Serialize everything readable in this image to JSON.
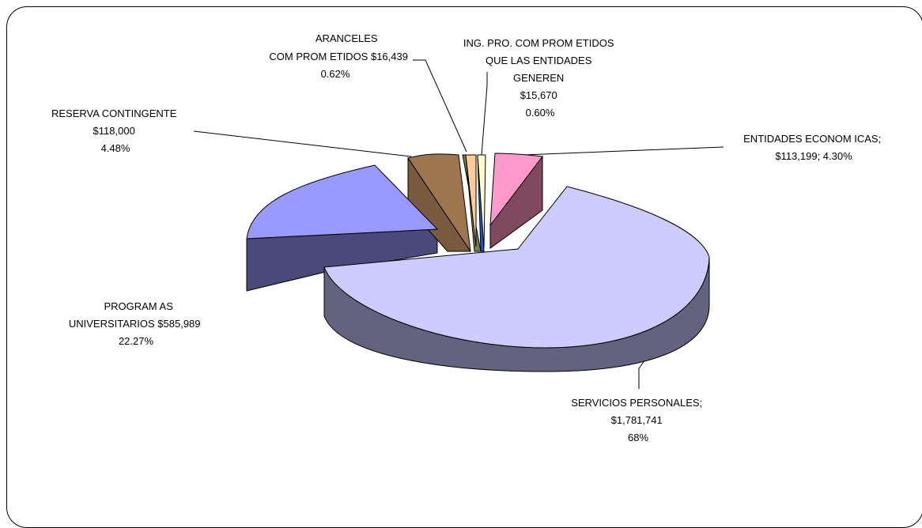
{
  "chart_data": {
    "type": "pie",
    "style": "3d-exploded",
    "slices": [
      {
        "key": "servicios",
        "name": "SERVICIOS PERSONALES",
        "value": 1781741,
        "percent": 68,
        "label_lines": [
          "SERVICIOS PERSONALES;",
          "$1,781,741",
          "68%"
        ],
        "top_color": "#ccccff",
        "side_color": "#636380"
      },
      {
        "key": "programas",
        "name": "PROGRAMAS UNIVERSITARIOS",
        "value": 585989,
        "percent": 22.27,
        "label_lines": [
          "PROGRAM AS",
          "UNIVERSITARIOS $585,989",
          "22.27%"
        ],
        "top_color": "#9999ff",
        "side_color": "#4a4a7a"
      },
      {
        "key": "reserva",
        "name": "RESERVA CONTINGENTE",
        "value": 118000,
        "percent": 4.48,
        "label_lines": [
          "RESERVA CONTINGENTE",
          "$118,000",
          "4.48%"
        ],
        "top_color": "#9d7650",
        "side_color": "#7a5a3c"
      },
      {
        "key": "aranceles",
        "name": "ARANCELES COMPROMETIDOS",
        "value": 16439,
        "percent": 0.62,
        "label_lines": [
          "ARANCELES",
          "COM PROM ETIDOS $16,439",
          "0.62%"
        ],
        "top_color": "#ffcc99",
        "side_color": "#808050"
      },
      {
        "key": "ingresos",
        "name": "ING. PRO. COMPROMETIDOS QUE LAS ENTIDADES GENEREN",
        "value": 15670,
        "percent": 0.6,
        "label_lines": [
          "ING. PRO. COM PROM ETIDOS",
          "QUE LAS ENTIDADES",
          "GENEREN",
          "$15,670",
          "0.60%"
        ],
        "top_color": "#ffffcc",
        "side_color": "#2255cc"
      },
      {
        "key": "entidades",
        "name": "ENTIDADES ECONOMICAS",
        "value": 113199,
        "percent": 4.3,
        "label_lines": [
          "ENTIDADES ECONOM ICAS;",
          "$113,199; 4.30%"
        ],
        "top_color": "#ff99cc",
        "side_color": "#7f4a5e"
      }
    ],
    "legend": "none",
    "data_labels": "outside-with-leader-lines"
  }
}
